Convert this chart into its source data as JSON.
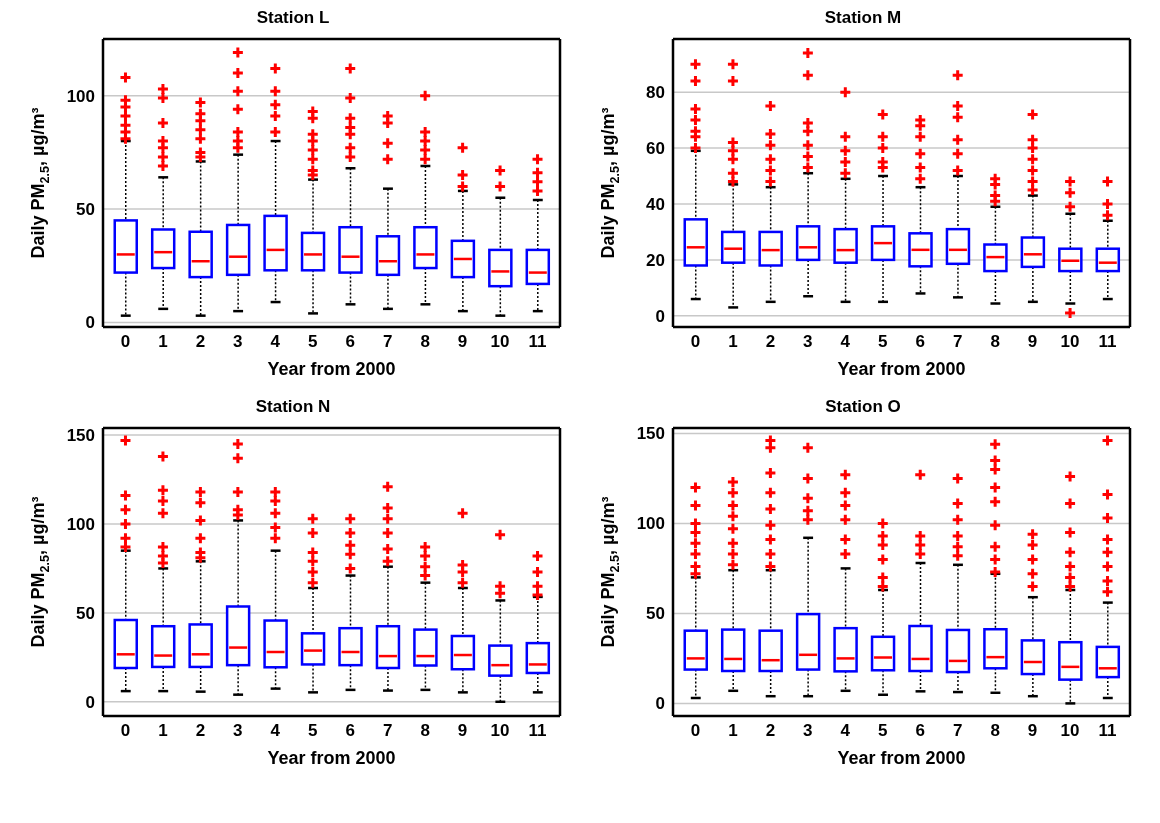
{
  "chart_data": [
    {
      "type": "box",
      "title": "Station L",
      "xlabel": "Year from 2000",
      "ylabel": "Daily PM$_{2.5}$, µg/m³",
      "categories": [
        "0",
        "1",
        "2",
        "3",
        "4",
        "5",
        "6",
        "7",
        "8",
        "9",
        "10",
        "11"
      ],
      "ylim": [
        -2,
        125
      ],
      "yticks": [
        0,
        50,
        100
      ],
      "grid": "y",
      "marker": "cross",
      "series": [
        {
          "color": "#0000ff",
          "boxes": [
            {
              "low": 3,
              "q1": 22,
              "median": 30,
              "q3": 45,
              "high": 80,
              "outliers": [
                108,
                98,
                95,
                91,
                87,
                84,
                81
              ]
            },
            {
              "low": 6,
              "q1": 24,
              "median": 31,
              "q3": 41,
              "high": 64,
              "outliers": [
                103,
                99,
                88,
                80,
                77,
                73,
                69
              ]
            },
            {
              "low": 3,
              "q1": 20,
              "median": 27,
              "q3": 40,
              "high": 71,
              "outliers": [
                97,
                92,
                89,
                85,
                81,
                75,
                73
              ]
            },
            {
              "low": 5,
              "q1": 21,
              "median": 29,
              "q3": 43,
              "high": 74,
              "outliers": [
                119,
                110,
                102,
                94,
                84,
                80,
                77
              ]
            },
            {
              "low": 9,
              "q1": 23,
              "median": 32,
              "q3": 47,
              "high": 80,
              "outliers": [
                112,
                102,
                96,
                91,
                84
              ]
            },
            {
              "low": 4,
              "q1": 23,
              "median": 30,
              "q3": 39.5,
              "high": 63,
              "outliers": [
                93,
                90,
                83,
                80,
                76,
                72,
                67,
                65
              ]
            },
            {
              "low": 8,
              "q1": 22,
              "median": 29,
              "q3": 42,
              "high": 68,
              "outliers": [
                112,
                99,
                90,
                86,
                83,
                77,
                73
              ]
            },
            {
              "low": 6,
              "q1": 21,
              "median": 27,
              "q3": 38,
              "high": 59,
              "outliers": [
                91,
                88,
                79,
                72
              ]
            },
            {
              "low": 8,
              "q1": 24,
              "median": 30,
              "q3": 42,
              "high": 69,
              "outliers": [
                100,
                84,
                80,
                76,
                72
              ]
            },
            {
              "low": 5,
              "q1": 20,
              "median": 28,
              "q3": 36,
              "high": 58,
              "outliers": [
                77,
                65,
                60
              ]
            },
            {
              "low": 3,
              "q1": 16,
              "median": 22.5,
              "q3": 32,
              "high": 55,
              "outliers": [
                67,
                60
              ]
            },
            {
              "low": 5,
              "q1": 17,
              "median": 22,
              "q3": 32,
              "high": 54,
              "outliers": [
                72,
                66,
                62,
                58
              ]
            }
          ]
        }
      ]
    },
    {
      "type": "box",
      "title": "Station M",
      "xlabel": "Year from 2000",
      "ylabel": "Daily PM$_{2.5}$, µg/m³",
      "categories": [
        "0",
        "1",
        "2",
        "3",
        "4",
        "5",
        "6",
        "7",
        "8",
        "9",
        "10",
        "11"
      ],
      "ylim": [
        -4,
        99
      ],
      "yticks": [
        0,
        20,
        40,
        60,
        80
      ],
      "grid": "y",
      "marker": "cross",
      "series": [
        {
          "color": "#0000ff",
          "boxes": [
            {
              "low": 6,
              "q1": 18,
              "median": 24.5,
              "q3": 34.5,
              "high": 59,
              "outliers": [
                90,
                84,
                74,
                70,
                66,
                64,
                60
              ]
            },
            {
              "low": 3,
              "q1": 19,
              "median": 24,
              "q3": 30,
              "high": 47,
              "outliers": [
                90,
                84,
                62,
                59,
                56,
                51,
                48
              ]
            },
            {
              "low": 5,
              "q1": 18,
              "median": 23.5,
              "q3": 30,
              "high": 46,
              "outliers": [
                75,
                65,
                61,
                56,
                52,
                48
              ]
            },
            {
              "low": 7,
              "q1": 20,
              "median": 24.5,
              "q3": 32,
              "high": 51,
              "outliers": [
                94,
                86,
                69,
                66,
                61,
                57,
                53
              ]
            },
            {
              "low": 5,
              "q1": 19,
              "median": 23.5,
              "q3": 31,
              "high": 49,
              "outliers": [
                80,
                64,
                59,
                55,
                51
              ]
            },
            {
              "low": 5,
              "q1": 20,
              "median": 26,
              "q3": 32,
              "high": 50,
              "outliers": [
                72,
                64,
                60,
                55,
                53
              ]
            },
            {
              "low": 8,
              "q1": 17.7,
              "median": 23.6,
              "q3": 29.5,
              "high": 46,
              "outliers": [
                70,
                68,
                64,
                58,
                53,
                49
              ]
            },
            {
              "low": 6.6,
              "q1": 18.6,
              "median": 23.6,
              "q3": 31,
              "high": 50,
              "outliers": [
                86,
                75,
                71,
                63,
                58,
                52
              ]
            },
            {
              "low": 4.4,
              "q1": 16,
              "median": 21,
              "q3": 25.5,
              "high": 39,
              "outliers": [
                49,
                47,
                43,
                41
              ]
            },
            {
              "low": 5,
              "q1": 17.5,
              "median": 22,
              "q3": 28,
              "high": 43,
              "outliers": [
                72,
                63,
                60,
                56,
                52,
                48,
                45
              ]
            },
            {
              "low": 4.4,
              "q1": 16,
              "median": 19.7,
              "q3": 24,
              "high": 36.5,
              "outliers": [
                48,
                44,
                39,
                1
              ]
            },
            {
              "low": 6,
              "q1": 16,
              "median": 19,
              "q3": 24,
              "high": 34,
              "outliers": [
                48,
                40,
                36
              ]
            }
          ]
        }
      ]
    },
    {
      "type": "box",
      "title": "Station N",
      "xlabel": "Year from 2000",
      "ylabel": "Daily PM$_{2.5}$, µg/m³",
      "categories": [
        "0",
        "1",
        "2",
        "3",
        "4",
        "5",
        "6",
        "7",
        "8",
        "9",
        "10",
        "11"
      ],
      "ylim": [
        -8,
        154
      ],
      "yticks": [
        0,
        50,
        100,
        150
      ],
      "grid": "y",
      "marker": "cross",
      "series": [
        {
          "color": "#0000ff",
          "boxes": [
            {
              "low": 6,
              "q1": 19,
              "median": 26.7,
              "q3": 46,
              "high": 85,
              "outliers": [
                147,
                116,
                108,
                100,
                92,
                87
              ]
            },
            {
              "low": 6,
              "q1": 19.6,
              "median": 26,
              "q3": 42.5,
              "high": 75,
              "outliers": [
                138,
                119,
                113,
                106,
                87,
                82,
                78
              ]
            },
            {
              "low": 5.7,
              "q1": 19.6,
              "median": 26.7,
              "q3": 43.5,
              "high": 79,
              "outliers": [
                118,
                112,
                102,
                92,
                84,
                81
              ]
            },
            {
              "low": 4,
              "q1": 20.6,
              "median": 30.5,
              "q3": 53.6,
              "high": 102,
              "outliers": [
                145,
                137,
                118,
                108,
                105
              ]
            },
            {
              "low": 7.4,
              "q1": 19.4,
              "median": 28,
              "q3": 45.7,
              "high": 85,
              "outliers": [
                118,
                113,
                106,
                98,
                92
              ]
            },
            {
              "low": 5.3,
              "q1": 21,
              "median": 28.8,
              "q3": 38.5,
              "high": 64,
              "outliers": [
                103,
                95,
                84,
                79,
                73,
                67
              ]
            },
            {
              "low": 6.7,
              "q1": 20.6,
              "median": 28,
              "q3": 41.4,
              "high": 71,
              "outliers": [
                103,
                95,
                88,
                83,
                75
              ]
            },
            {
              "low": 6.3,
              "q1": 19,
              "median": 25.7,
              "q3": 42.5,
              "high": 76,
              "outliers": [
                121,
                109,
                103,
                95,
                86,
                79
              ]
            },
            {
              "low": 6.7,
              "q1": 20.4,
              "median": 25.7,
              "q3": 40.6,
              "high": 67,
              "outliers": [
                87,
                82,
                76,
                71
              ]
            },
            {
              "low": 5.3,
              "q1": 18.3,
              "median": 26.3,
              "q3": 37,
              "high": 64,
              "outliers": [
                106,
                77,
                73,
                67
              ]
            },
            {
              "low": 0,
              "q1": 14.7,
              "median": 20.6,
              "q3": 31.6,
              "high": 57,
              "outliers": [
                94,
                65,
                61
              ]
            },
            {
              "low": 5.3,
              "q1": 16.2,
              "median": 21,
              "q3": 33,
              "high": 59,
              "outliers": [
                82,
                73,
                65,
                60
              ]
            }
          ]
        }
      ]
    },
    {
      "type": "box",
      "title": "Station O",
      "xlabel": "Year from 2000",
      "ylabel": "Daily PM$_{2.5}$, µg/m³",
      "categories": [
        "0",
        "1",
        "2",
        "3",
        "4",
        "5",
        "6",
        "7",
        "8",
        "9",
        "10",
        "11"
      ],
      "ylim": [
        -7,
        153
      ],
      "yticks": [
        0,
        50,
        100,
        150
      ],
      "grid": "y",
      "marker": "cross",
      "series": [
        {
          "color": "#0000ff",
          "boxes": [
            {
              "low": 3,
              "q1": 18.8,
              "median": 25,
              "q3": 40.4,
              "high": 70,
              "outliers": [
                120,
                110,
                100,
                95,
                89,
                83,
                76,
                72
              ]
            },
            {
              "low": 7,
              "q1": 18,
              "median": 24.7,
              "q3": 41,
              "high": 74,
              "outliers": [
                123,
                117,
                110,
                104,
                97,
                89,
                83,
                77
              ]
            },
            {
              "low": 4,
              "q1": 18,
              "median": 24,
              "q3": 40.4,
              "high": 74,
              "outliers": [
                146,
                142,
                128,
                117,
                108,
                99,
                91,
                83,
                76
              ]
            },
            {
              "low": 4,
              "q1": 18.8,
              "median": 27,
              "q3": 49.6,
              "high": 92,
              "outliers": [
                142,
                125,
                114,
                107,
                102
              ]
            },
            {
              "low": 7,
              "q1": 17.8,
              "median": 25,
              "q3": 41.8,
              "high": 75,
              "outliers": [
                127,
                117,
                110,
                102,
                91,
                83
              ]
            },
            {
              "low": 4.8,
              "q1": 18.4,
              "median": 25.5,
              "q3": 37,
              "high": 63,
              "outliers": [
                100,
                93,
                88,
                80,
                70,
                65
              ]
            },
            {
              "low": 6.7,
              "q1": 18,
              "median": 24.7,
              "q3": 43,
              "high": 78,
              "outliers": [
                127,
                93,
                88,
                83
              ]
            },
            {
              "low": 6.3,
              "q1": 17.4,
              "median": 23.6,
              "q3": 40.8,
              "high": 77,
              "outliers": [
                125,
                111,
                102,
                93,
                87,
                82
              ]
            },
            {
              "low": 5.9,
              "q1": 19.5,
              "median": 25.7,
              "q3": 41.2,
              "high": 72,
              "outliers": [
                144,
                135,
                130,
                120,
                112,
                99,
                87,
                80,
                73
              ]
            },
            {
              "low": 4,
              "q1": 16.3,
              "median": 23,
              "q3": 35,
              "high": 59,
              "outliers": [
                94,
                88,
                80,
                72,
                65
              ]
            },
            {
              "low": 0,
              "q1": 13.2,
              "median": 20.3,
              "q3": 34,
              "high": 63,
              "outliers": [
                126,
                111,
                95,
                84,
                76,
                70,
                65
              ]
            },
            {
              "low": 3,
              "q1": 14.6,
              "median": 19.5,
              "q3": 31.4,
              "high": 56,
              "outliers": [
                146,
                116,
                103,
                91,
                84,
                76,
                68,
                62
              ]
            }
          ]
        }
      ]
    }
  ]
}
